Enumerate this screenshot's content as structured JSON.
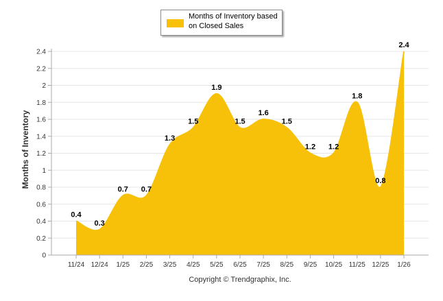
{
  "legend": {
    "label": "Months of Inventory based on Closed Sales"
  },
  "copyright": "Copyright © Trendgraphix, Inc.",
  "colors": {
    "series": "#F7C10A",
    "grid": "#e6e6e6",
    "axis": "#aaaaaa",
    "text": "#333333"
  },
  "chart_data": {
    "type": "area",
    "title": "",
    "xlabel": "",
    "ylabel": "Months of Inventory",
    "ylim": [
      0,
      2.4
    ],
    "yticks": [
      0,
      0.2,
      0.4,
      0.6,
      0.8,
      1,
      1.2,
      1.4,
      1.6,
      1.8,
      2,
      2.2,
      2.4
    ],
    "grid": true,
    "legend_position": "top-center",
    "categories": [
      "11/24",
      "12/24",
      "1/25",
      "2/25",
      "3/25",
      "4/25",
      "5/25",
      "6/25",
      "7/25",
      "8/25",
      "9/25",
      "10/25",
      "11/25",
      "12/25",
      "1/26"
    ],
    "series": [
      {
        "name": "Months of Inventory based on Closed Sales",
        "values": [
          0.4,
          0.3,
          0.7,
          0.7,
          1.3,
          1.5,
          1.9,
          1.5,
          1.6,
          1.5,
          1.2,
          1.2,
          1.8,
          0.8,
          2.4
        ],
        "labels": [
          "0.4",
          "0.3",
          "0.7",
          "0.7",
          "1.3",
          "1.5",
          "1.9",
          "1.5",
          "1.6",
          "1.5",
          "1.2",
          "1.2",
          "1.8",
          "0.8",
          "2.4"
        ]
      }
    ]
  }
}
